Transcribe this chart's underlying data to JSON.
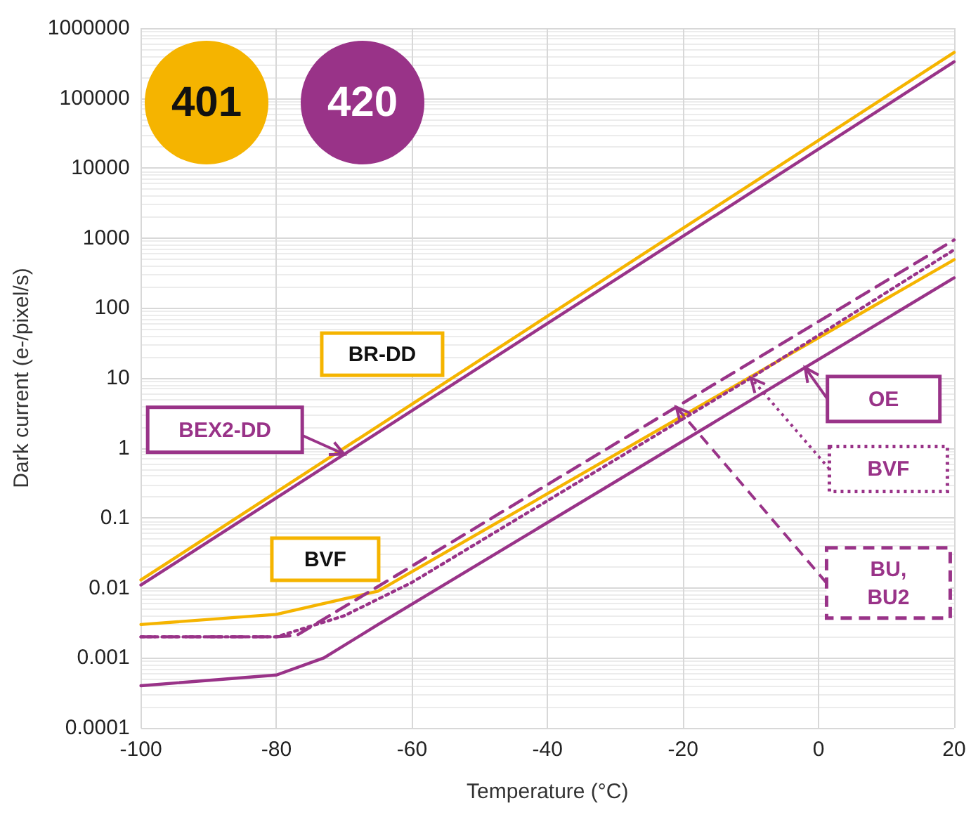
{
  "chart_data": {
    "type": "line",
    "xlabel": "Temperature (°C)",
    "ylabel": "Dark current (e-/pixel/s)",
    "series": [
      {
        "name": "BR-DD",
        "color": "#f5b400",
        "line_style": "solid",
        "x": [
          -100,
          20
        ],
        "values": [
          0.013,
          450000
        ]
      },
      {
        "name": "BEX2-DD",
        "color": "#993388",
        "line_style": "solid",
        "x": [
          -100,
          20
        ],
        "values": [
          0.011,
          330000
        ]
      },
      {
        "name": "BVF",
        "color": "#f5b400",
        "line_style": "solid",
        "x": [
          -100,
          -80,
          -65,
          20
        ],
        "values": [
          0.003,
          0.0042,
          0.009,
          490
        ]
      },
      {
        "name": "BU, BU2",
        "color": "#993388",
        "line_style": "dashed",
        "x": [
          -100,
          -80,
          -77,
          20
        ],
        "values": [
          0.002,
          0.002,
          0.0021,
          940
        ]
      },
      {
        "name": "BVF",
        "color": "#993388",
        "line_style": "dotted",
        "x": [
          -100,
          -80,
          -70,
          -60,
          -10,
          20
        ],
        "values": [
          0.002,
          0.002,
          0.004,
          0.012,
          10,
          680
        ]
      },
      {
        "name": "OE",
        "color": "#993388",
        "line_style": "solid",
        "x": [
          -100,
          -80,
          -73,
          -65,
          20
        ],
        "values": [
          0.0004,
          0.00057,
          0.001,
          0.003,
          270
        ]
      }
    ],
    "annotations": [
      "401",
      "420"
    ],
    "xlim": [
      -100,
      20
    ],
    "xticks": [
      -100,
      -80,
      -60,
      -40,
      -20,
      0,
      20
    ],
    "ylim": [
      0.0001,
      1000000
    ],
    "yticks": [
      0.0001,
      0.001,
      0.01,
      0.1,
      1,
      10,
      100,
      1000,
      10000,
      100000,
      1000000
    ],
    "log": "y",
    "grid": true,
    "marker": "none"
  }
}
